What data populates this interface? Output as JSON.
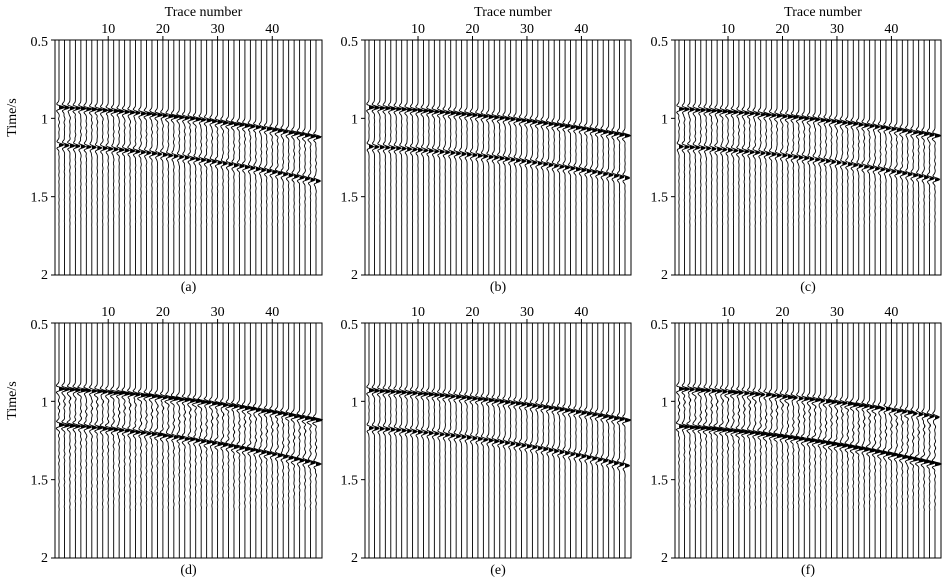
{
  "figure": {
    "xlabel": "Trace number",
    "ylabel": "Time/s",
    "colors": {
      "ink": "#000000",
      "background": "#ffffff"
    }
  },
  "chart_data": [
    {
      "type": "wiggle",
      "id": "a",
      "caption": "(a)",
      "xlim": [
        1,
        48
      ],
      "ylim": [
        0.5,
        2.0
      ],
      "xticks": [
        "10",
        "20",
        "30",
        "40"
      ],
      "yticks": [
        "0.5",
        "1",
        "1.5",
        "2"
      ],
      "x_axis": "top",
      "y_axis": "left",
      "show_xlabel": true,
      "show_ylabel": true,
      "n_traces": 48,
      "events": [
        {
          "t0": 0.93,
          "t_end": 1.12,
          "amp": 1.0
        },
        {
          "t0": 1.17,
          "t_end": 1.4,
          "amp": 0.9
        }
      ],
      "noise": "medium"
    },
    {
      "type": "wiggle",
      "id": "b",
      "caption": "(b)",
      "xlim": [
        1,
        48
      ],
      "ylim": [
        0.5,
        2.0
      ],
      "xticks": [
        "10",
        "20",
        "30",
        "40"
      ],
      "yticks": [
        "0.5",
        "1",
        "1.5",
        "2"
      ],
      "x_axis": "top",
      "y_axis": "left",
      "show_xlabel": true,
      "show_ylabel": false,
      "n_traces": 48,
      "events": [
        {
          "t0": 0.93,
          "t_end": 1.11,
          "amp": 1.0
        },
        {
          "t0": 1.18,
          "t_end": 1.38,
          "amp": 0.9
        }
      ],
      "noise": "low"
    },
    {
      "type": "wiggle",
      "id": "c",
      "caption": "(c)",
      "xlim": [
        1,
        48
      ],
      "ylim": [
        0.5,
        2.0
      ],
      "xticks": [
        "10",
        "20",
        "30",
        "40"
      ],
      "yticks": [
        "0.5",
        "1",
        "1.5",
        "2"
      ],
      "x_axis": "top",
      "y_axis": "left",
      "show_xlabel": true,
      "show_ylabel": false,
      "n_traces": 48,
      "events": [
        {
          "t0": 0.94,
          "t_end": 1.11,
          "amp": 1.0
        },
        {
          "t0": 1.18,
          "t_end": 1.39,
          "amp": 0.9
        }
      ],
      "noise": "medium"
    },
    {
      "type": "wiggle",
      "id": "d",
      "caption": "(d)",
      "xlim": [
        1,
        48
      ],
      "ylim": [
        0.5,
        2.0
      ],
      "xticks": [
        "10",
        "20",
        "30",
        "40"
      ],
      "yticks": [
        "0.5",
        "1",
        "1.5",
        "2"
      ],
      "x_axis": "top",
      "y_axis": "left",
      "show_xlabel": false,
      "show_ylabel": true,
      "n_traces": 48,
      "events": [
        {
          "t0": 0.92,
          "t_end": 1.12,
          "amp": 1.1
        },
        {
          "t0": 1.15,
          "t_end": 1.4,
          "amp": 1.0
        }
      ],
      "noise": "high"
    },
    {
      "type": "wiggle",
      "id": "e",
      "caption": "(e)",
      "xlim": [
        1,
        48
      ],
      "ylim": [
        0.5,
        2.0
      ],
      "xticks": [
        "10",
        "20",
        "30",
        "40"
      ],
      "yticks": [
        "0.5",
        "1",
        "1.5",
        "2"
      ],
      "x_axis": "top",
      "y_axis": "left",
      "show_xlabel": false,
      "show_ylabel": false,
      "n_traces": 48,
      "events": [
        {
          "t0": 0.93,
          "t_end": 1.12,
          "amp": 1.0
        },
        {
          "t0": 1.17,
          "t_end": 1.41,
          "amp": 0.9
        }
      ],
      "noise": "low"
    },
    {
      "type": "wiggle",
      "id": "f",
      "caption": "(f)",
      "xlim": [
        1,
        48
      ],
      "ylim": [
        0.5,
        2.0
      ],
      "xticks": [
        "10",
        "20",
        "30",
        "40"
      ],
      "yticks": [
        "0.5",
        "1",
        "1.5",
        "2"
      ],
      "x_axis": "top",
      "y_axis": "left",
      "show_xlabel": false,
      "show_ylabel": false,
      "n_traces": 48,
      "events": [
        {
          "t0": 0.92,
          "t_end": 1.1,
          "amp": 1.0
        },
        {
          "t0": 1.16,
          "t_end": 1.4,
          "amp": 1.2
        }
      ],
      "noise": "high"
    }
  ]
}
